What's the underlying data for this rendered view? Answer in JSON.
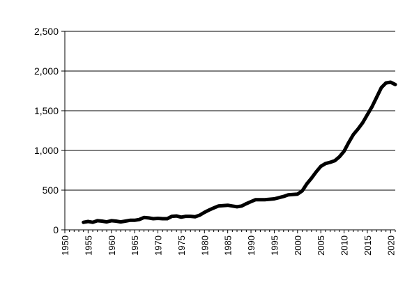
{
  "chart_data": {
    "type": "line",
    "title": "",
    "xlabel": "",
    "ylabel": "",
    "xlim": [
      1950,
      2021
    ],
    "ylim": [
      0,
      2500
    ],
    "grid": "horizontal",
    "legend": "none",
    "x_ticks": [
      1950,
      1955,
      1960,
      1965,
      1970,
      1975,
      1980,
      1985,
      1990,
      1995,
      2000,
      2005,
      2010,
      2015,
      2020
    ],
    "x_tick_labels": [
      "1950",
      "1955",
      "1960",
      "1965",
      "1970",
      "1975",
      "1980",
      "1985",
      "1990",
      "1995",
      "2000",
      "2005",
      "2010",
      "2015",
      "2020"
    ],
    "y_ticks": [
      0,
      500,
      1000,
      1500,
      2000,
      2500
    ],
    "y_tick_labels": [
      "0",
      "500",
      "1,000",
      "1,500",
      "2,000",
      "2,500"
    ],
    "colors": {
      "line": "#000000",
      "grid": "#000000",
      "axis": "#000000"
    },
    "series": [
      {
        "x": [
          1954,
          1955,
          1956,
          1957,
          1958,
          1959,
          1960,
          1961,
          1962,
          1963,
          1964,
          1965,
          1966,
          1967,
          1968,
          1969,
          1970,
          1971,
          1972,
          1973,
          1974,
          1975,
          1976,
          1977,
          1978,
          1979,
          1980,
          1981,
          1982,
          1983,
          1984,
          1985,
          1986,
          1987,
          1988,
          1989,
          1990,
          1991,
          1992,
          1993,
          1994,
          1995,
          1996,
          1997,
          1998,
          1999,
          2000,
          2001,
          2002,
          2003,
          2004,
          2005,
          2006,
          2007,
          2008,
          2009,
          2010,
          2011,
          2012,
          2013,
          2014,
          2015,
          2016,
          2017,
          2018,
          2019,
          2020,
          2021
        ],
        "values": [
          95,
          105,
          95,
          115,
          110,
          100,
          115,
          110,
          100,
          110,
          120,
          120,
          130,
          155,
          150,
          140,
          145,
          140,
          140,
          170,
          175,
          160,
          170,
          170,
          165,
          185,
          220,
          250,
          275,
          300,
          305,
          310,
          300,
          290,
          300,
          330,
          355,
          380,
          380,
          380,
          385,
          390,
          405,
          420,
          440,
          445,
          450,
          490,
          580,
          650,
          730,
          800,
          835,
          850,
          870,
          920,
          990,
          1100,
          1200,
          1270,
          1350,
          1450,
          1550,
          1670,
          1790,
          1850,
          1860,
          1830
        ]
      }
    ]
  }
}
